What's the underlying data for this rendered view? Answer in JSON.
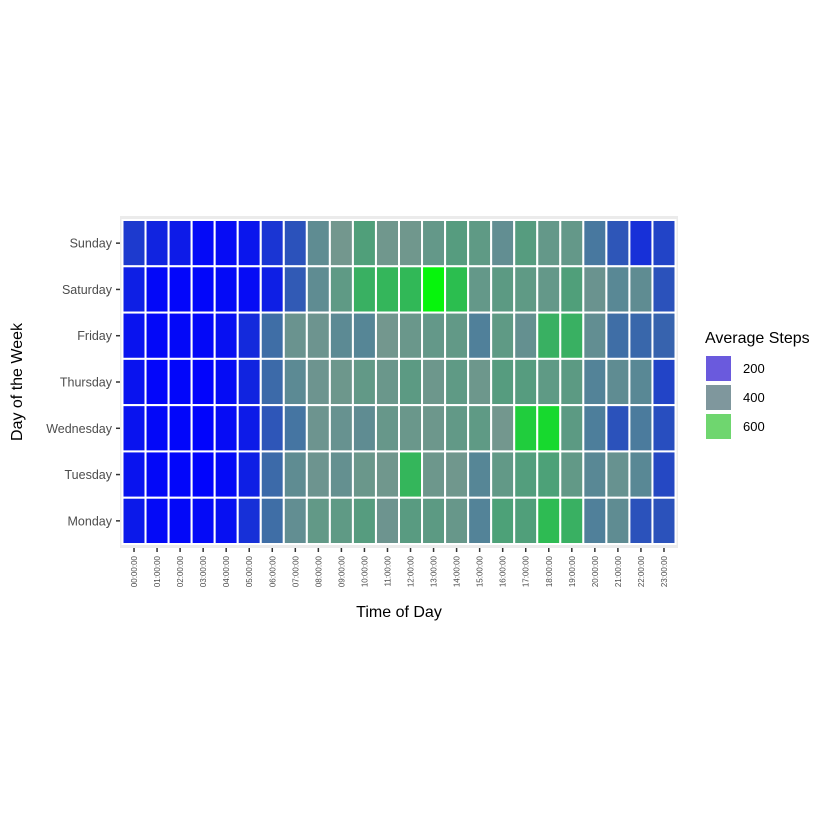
{
  "chart_data": {
    "type": "heatmap",
    "xlabel": "Time of Day",
    "ylabel": "Day of the Week",
    "x": [
      "00:00:00",
      "01:00:00",
      "02:00:00",
      "03:00:00",
      "04:00:00",
      "05:00:00",
      "06:00:00",
      "07:00:00",
      "08:00:00",
      "09:00:00",
      "10:00:00",
      "11:00:00",
      "12:00:00",
      "13:00:00",
      "14:00:00",
      "15:00:00",
      "16:00:00",
      "17:00:00",
      "18:00:00",
      "19:00:00",
      "20:00:00",
      "21:00:00",
      "22:00:00",
      "23:00:00"
    ],
    "y": [
      "Sunday",
      "Saturday",
      "Friday",
      "Thursday",
      "Wednesday",
      "Tuesday",
      "Monday"
    ],
    "values": [
      [
        100,
        60,
        45,
        15,
        20,
        35,
        90,
        150,
        330,
        400,
        520,
        410,
        410,
        450,
        500,
        470,
        340,
        500,
        450,
        450,
        250,
        160,
        80,
        120
      ],
      [
        50,
        12,
        10,
        8,
        15,
        20,
        50,
        170,
        330,
        470,
        600,
        620,
        630,
        780,
        650,
        450,
        480,
        470,
        450,
        520,
        370,
        310,
        330,
        150
      ],
      [
        30,
        12,
        12,
        12,
        25,
        70,
        220,
        370,
        380,
        320,
        300,
        400,
        430,
        450,
        460,
        280,
        470,
        350,
        600,
        600,
        340,
        220,
        200,
        190
      ],
      [
        30,
        10,
        8,
        6,
        18,
        60,
        210,
        320,
        380,
        420,
        460,
        430,
        480,
        420,
        470,
        420,
        500,
        500,
        470,
        480,
        290,
        330,
        310,
        120
      ],
      [
        30,
        12,
        8,
        5,
        20,
        45,
        160,
        240,
        380,
        360,
        330,
        440,
        430,
        420,
        460,
        470,
        400,
        690,
        720,
        480,
        270,
        150,
        260,
        140
      ],
      [
        30,
        12,
        8,
        5,
        15,
        50,
        210,
        330,
        380,
        350,
        430,
        410,
        620,
        420,
        410,
        300,
        460,
        510,
        530,
        460,
        310,
        360,
        310,
        130
      ],
      [
        40,
        15,
        12,
        15,
        25,
        80,
        220,
        340,
        460,
        470,
        500,
        380,
        490,
        480,
        440,
        290,
        530,
        520,
        640,
        600,
        280,
        330,
        150,
        150
      ]
    ],
    "color_scale": {
      "low": "#0000ff",
      "high": "#00ff00",
      "stops": [
        0,
        800
      ]
    },
    "legend": {
      "title": "Average Steps",
      "position": "right",
      "entries": [
        {
          "label": "200",
          "color": "#6a5add"
        },
        {
          "label": "400",
          "color": "#7f979d"
        },
        {
          "label": "600",
          "color": "#6fd66f"
        }
      ]
    },
    "grid": true
  }
}
